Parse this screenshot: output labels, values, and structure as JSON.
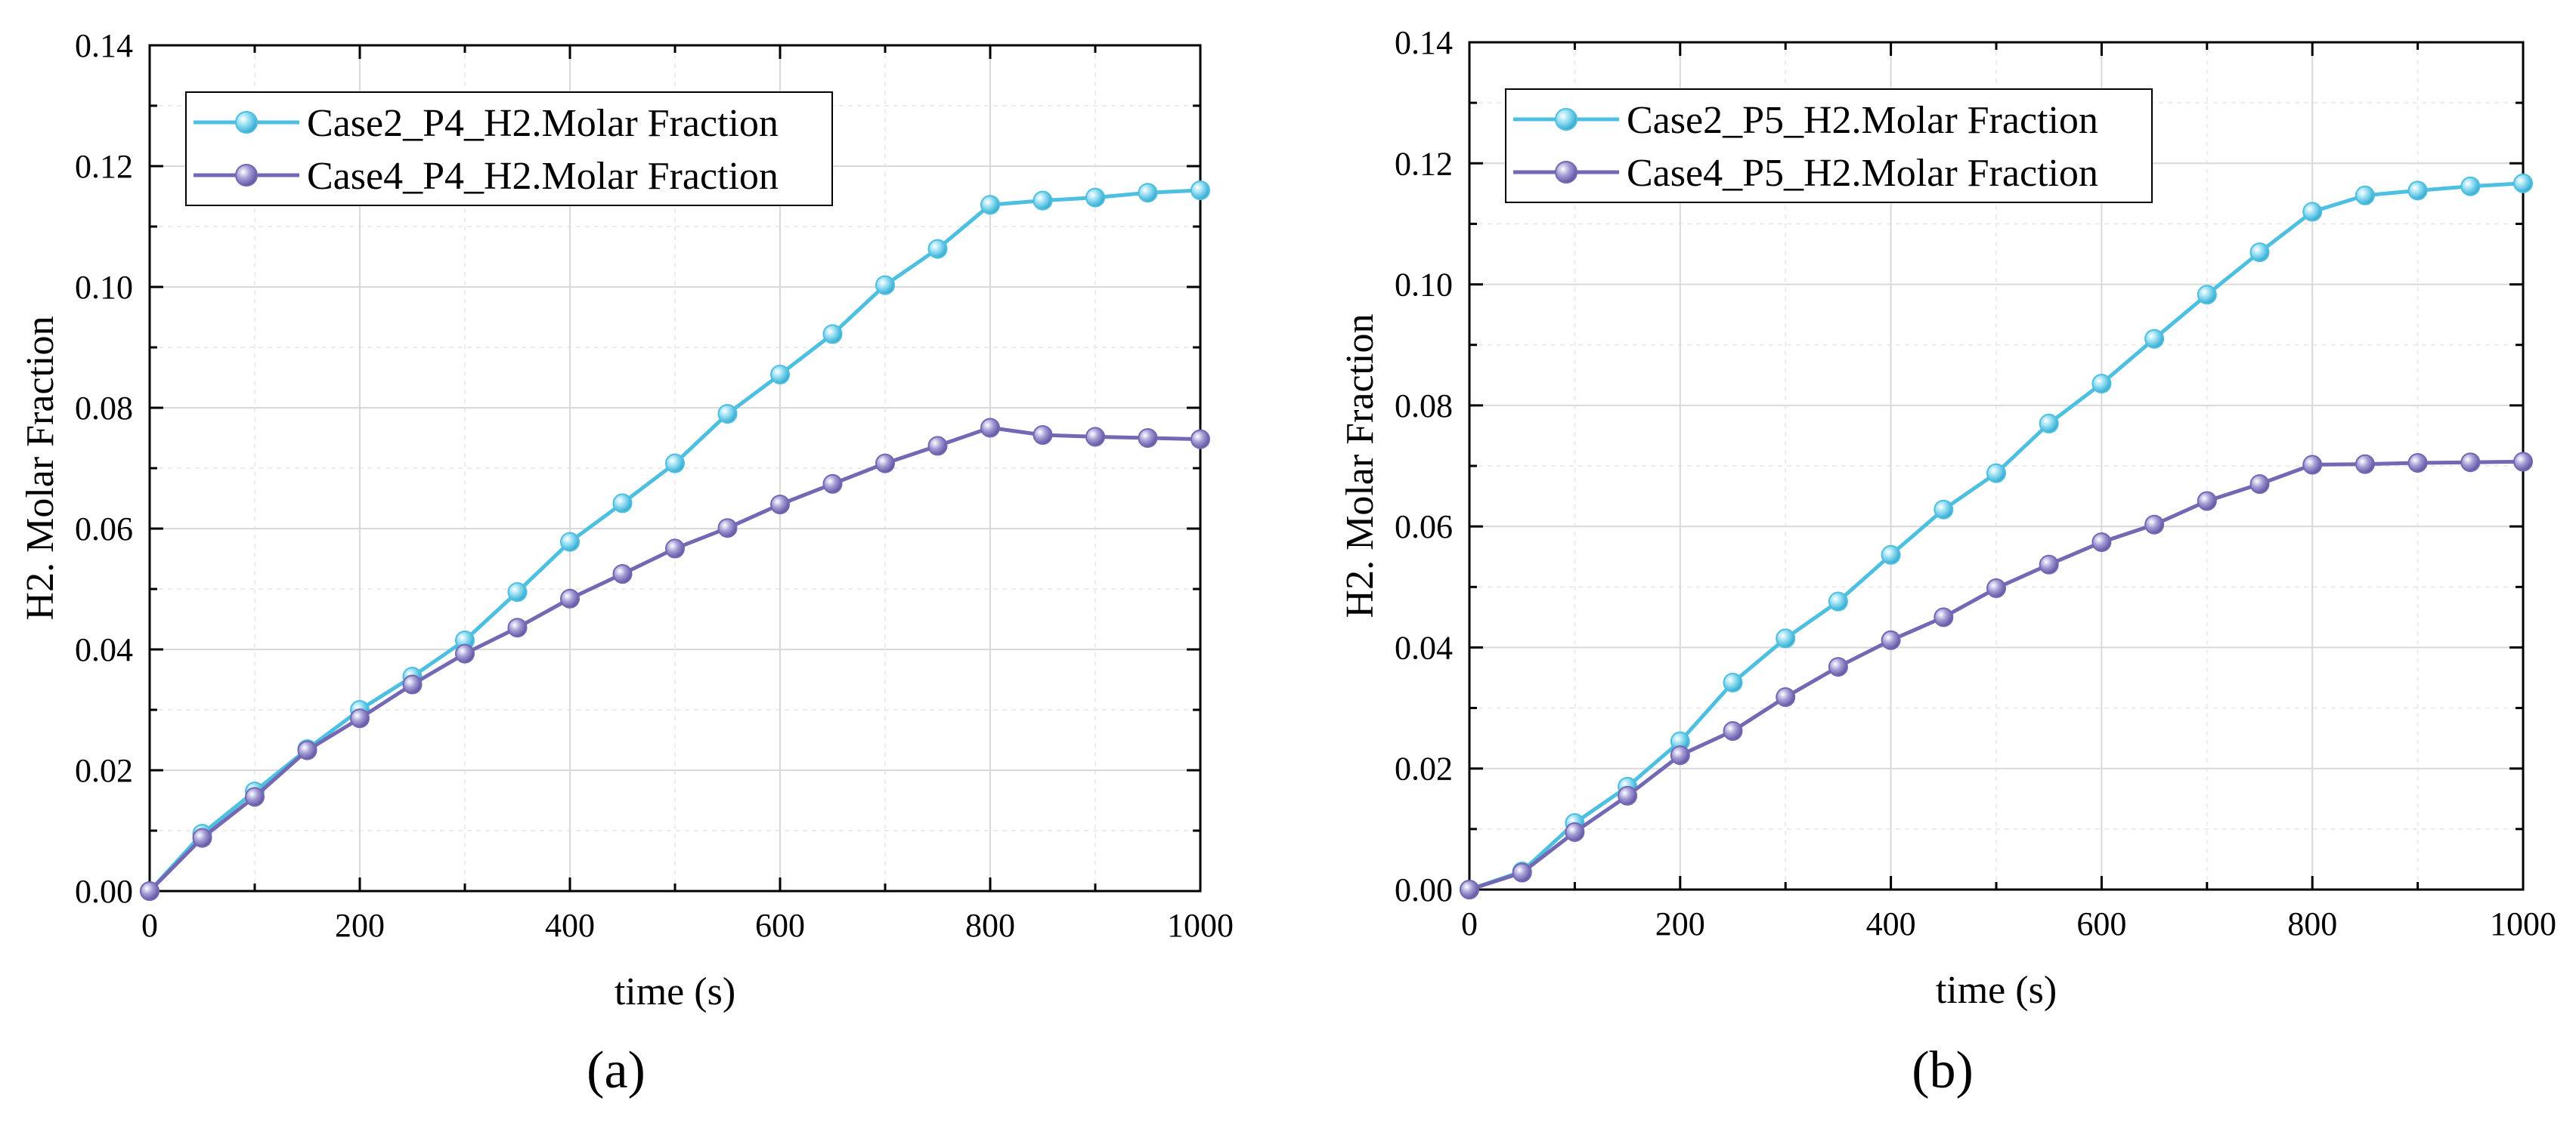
{
  "colors": {
    "case2": "#4dbfe0",
    "case4": "#7268b3",
    "grid_major": "#d9d9d9",
    "grid_minor": "#ececec",
    "axis": "#000000"
  },
  "chart_data": [
    {
      "type": "line",
      "panel_label": "(a)",
      "xlabel": "time (s)",
      "ylabel": "H2. Molar Fraction",
      "xlim": [
        0,
        1000
      ],
      "ylim": [
        0,
        0.14
      ],
      "xticks": [
        0,
        200,
        400,
        600,
        800,
        1000
      ],
      "yticks": [
        0.0,
        0.02,
        0.04,
        0.06,
        0.08,
        0.1,
        0.12,
        0.14
      ],
      "ytick_labels": [
        "0.00",
        "0.02",
        "0.04",
        "0.06",
        "0.08",
        "0.10",
        "0.12",
        "0.14"
      ],
      "xtick_labels": [
        "0",
        "200",
        "400",
        "600",
        "800",
        "1000"
      ],
      "grid": true,
      "legend_position": "top-left",
      "x": [
        0,
        50,
        100,
        150,
        200,
        250,
        300,
        350,
        400,
        450,
        500,
        550,
        600,
        650,
        700,
        750,
        800,
        850,
        900,
        950,
        1000
      ],
      "series": [
        {
          "name": "Case2_P4_H2.Molar Fraction",
          "color_key": "case2",
          "values": [
            0.0,
            0.0095,
            0.0165,
            0.0235,
            0.03,
            0.0355,
            0.0415,
            0.0495,
            0.0578,
            0.0642,
            0.0708,
            0.079,
            0.0855,
            0.0922,
            0.1003,
            0.1063,
            0.1136,
            0.1143,
            0.1148,
            0.1156,
            0.116
          ]
        },
        {
          "name": "Case4_P4_H2.Molar Fraction",
          "color_key": "case4",
          "values": [
            0.0,
            0.0088,
            0.0156,
            0.0233,
            0.0286,
            0.0342,
            0.0393,
            0.0436,
            0.0484,
            0.0525,
            0.0567,
            0.0601,
            0.064,
            0.0674,
            0.0708,
            0.0737,
            0.0767,
            0.0755,
            0.0752,
            0.075,
            0.0748
          ]
        }
      ]
    },
    {
      "type": "line",
      "panel_label": "(b)",
      "xlabel": "time (s)",
      "ylabel": "H2. Molar Fraction",
      "xlim": [
        0,
        1000
      ],
      "ylim": [
        0,
        0.14
      ],
      "xticks": [
        0,
        200,
        400,
        600,
        800,
        1000
      ],
      "yticks": [
        0.0,
        0.02,
        0.04,
        0.06,
        0.08,
        0.1,
        0.12,
        0.14
      ],
      "ytick_labels": [
        "0.00",
        "0.02",
        "0.04",
        "0.06",
        "0.08",
        "0.10",
        "0.12",
        "0.14"
      ],
      "xtick_labels": [
        "0",
        "200",
        "400",
        "600",
        "800",
        "1000"
      ],
      "grid": true,
      "legend_position": "top-left",
      "x": [
        0,
        50,
        100,
        150,
        200,
        250,
        300,
        350,
        400,
        450,
        500,
        550,
        600,
        650,
        700,
        750,
        800,
        850,
        900,
        950,
        1000
      ],
      "series": [
        {
          "name": "Case2_P5_H2.Molar Fraction",
          "color_key": "case2",
          "values": [
            0.0,
            0.003,
            0.011,
            0.017,
            0.0245,
            0.0342,
            0.0415,
            0.0476,
            0.0553,
            0.0628,
            0.0688,
            0.077,
            0.0836,
            0.091,
            0.0983,
            0.1053,
            0.112,
            0.1147,
            0.1155,
            0.1162,
            0.1167
          ]
        },
        {
          "name": "Case4_P5_H2.Molar Fraction",
          "color_key": "case4",
          "values": [
            0.0,
            0.0028,
            0.0095,
            0.0155,
            0.0222,
            0.0262,
            0.0318,
            0.0368,
            0.0412,
            0.045,
            0.0498,
            0.0537,
            0.0574,
            0.0603,
            0.0642,
            0.067,
            0.0702,
            0.0703,
            0.0705,
            0.0706,
            0.0707
          ]
        }
      ]
    }
  ]
}
